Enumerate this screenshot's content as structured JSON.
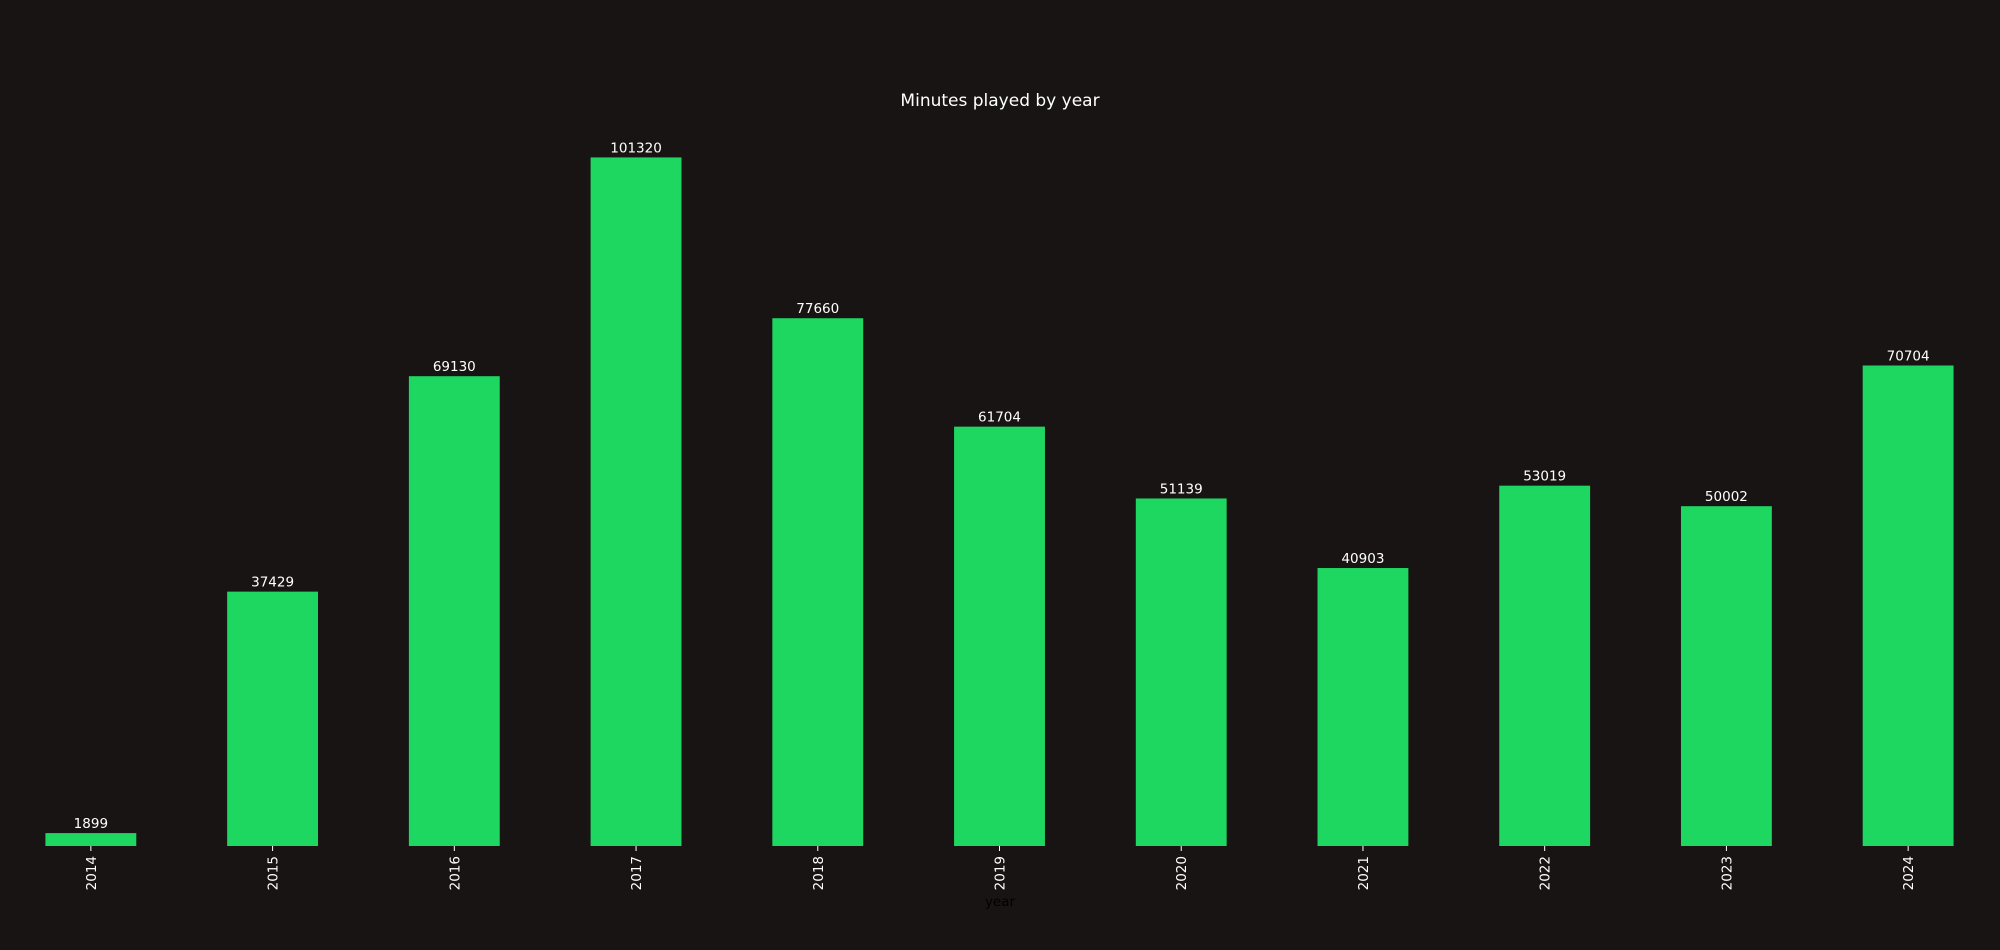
{
  "chart_data": {
    "type": "bar",
    "title": "Minutes played by year",
    "xlabel": "year",
    "ylabel": "",
    "categories": [
      "2014",
      "2015",
      "2016",
      "2017",
      "2018",
      "2019",
      "2020",
      "2021",
      "2022",
      "2023",
      "2024"
    ],
    "values": [
      1899,
      37429,
      69130,
      101320,
      77660,
      61704,
      51139,
      40903,
      53019,
      50002,
      70704
    ],
    "ylim": [
      0,
      106386
    ],
    "grid": false,
    "legend": "none",
    "colors": {
      "bar": "#1ED760",
      "background": "#191414",
      "text": "#FFFFFF",
      "axis_label": "#000000"
    }
  }
}
